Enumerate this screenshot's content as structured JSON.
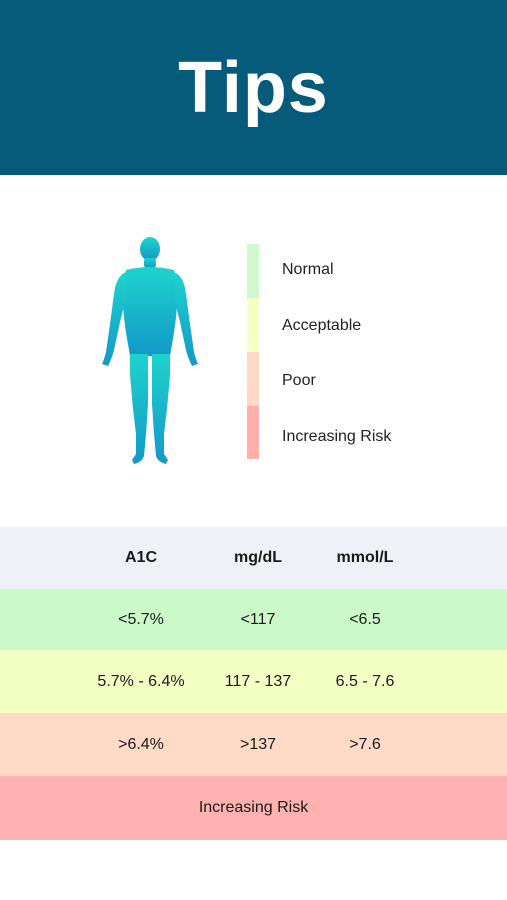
{
  "header": {
    "title": "Tips"
  },
  "legend": {
    "items": [
      {
        "label": "Normal",
        "color": "#d2f8cf"
      },
      {
        "label": "Acceptable",
        "color": "#f6ffc6"
      },
      {
        "label": "Poor",
        "color": "#ffd9c5"
      },
      {
        "label": "Increasing Risk",
        "color": "#ffb0ad"
      }
    ]
  },
  "figure": {
    "icon": "human-body-icon",
    "gradient": [
      "#1fd3cc",
      "#1199c9"
    ]
  },
  "table": {
    "header": {
      "col1": "A1C",
      "col2": "mg/dL",
      "col3": "mmol/L",
      "bg": "#eef2f7"
    },
    "rows": [
      {
        "col1": "<5.7%",
        "col2": "<117",
        "col3": "<6.5",
        "bg": "#ccf9c9"
      },
      {
        "col1": "5.7% - 6.4%",
        "col2": "117 - 137",
        "col3": "6.5 - 7.6",
        "bg": "#f4ffc4"
      },
      {
        "col1": ">6.4%",
        "col2": ">137",
        "col3": ">7.6",
        "bg": "#ffdac6"
      }
    ],
    "footer": {
      "label": "Increasing Risk",
      "bg": "#ffb2af"
    }
  }
}
